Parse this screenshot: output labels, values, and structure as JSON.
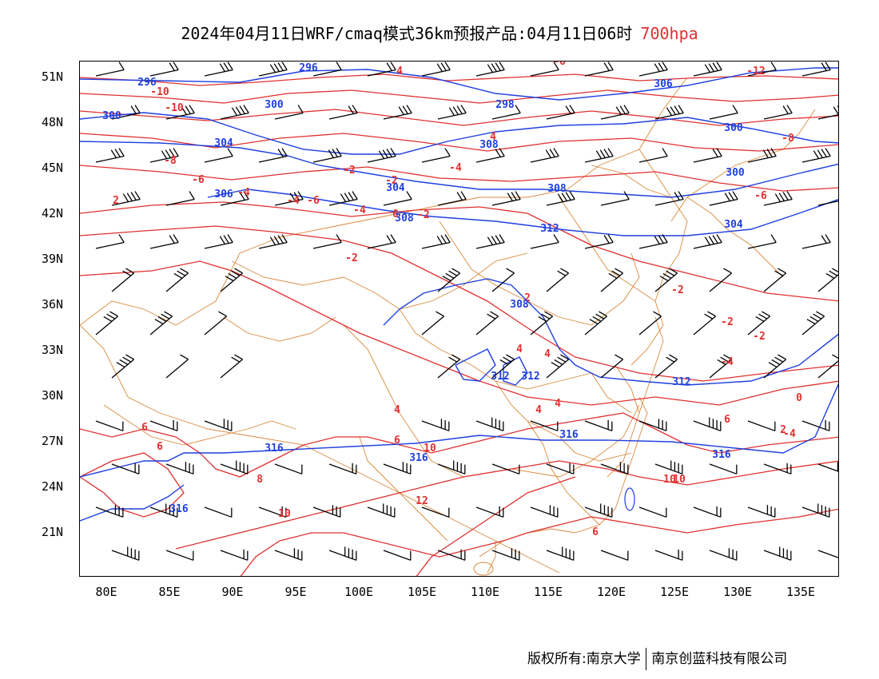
{
  "title": {
    "text": "2024年04月11日WRF/cmaq模式36km预报产品:04月11日06时",
    "level": "700hpa"
  },
  "colors": {
    "temperature": "#e03030",
    "geopotential": "#1f3fe0",
    "boundary": "#d98a3c",
    "wind": "#000000"
  },
  "axes": {
    "lat_labels": [
      "51N",
      "48N",
      "45N",
      "42N",
      "39N",
      "36N",
      "33N",
      "30N",
      "27N",
      "24N",
      "21N"
    ],
    "lon_labels": [
      "80E",
      "85E",
      "90E",
      "95E",
      "100E",
      "105E",
      "110E",
      "115E",
      "120E",
      "125E",
      "130E",
      "135E"
    ]
  },
  "contours": {
    "temperature_labels": [
      "-10",
      "-8",
      "-6",
      "-4",
      "-2",
      "0",
      "2",
      "4",
      "6",
      "8",
      "10",
      "12",
      "-12"
    ],
    "geopotential_labels": [
      "296",
      "298",
      "300",
      "304",
      "306",
      "308",
      "312",
      "316"
    ]
  },
  "footer": {
    "left": "版权所有:南京大学",
    "right": "南京创蓝科技有限公司"
  }
}
